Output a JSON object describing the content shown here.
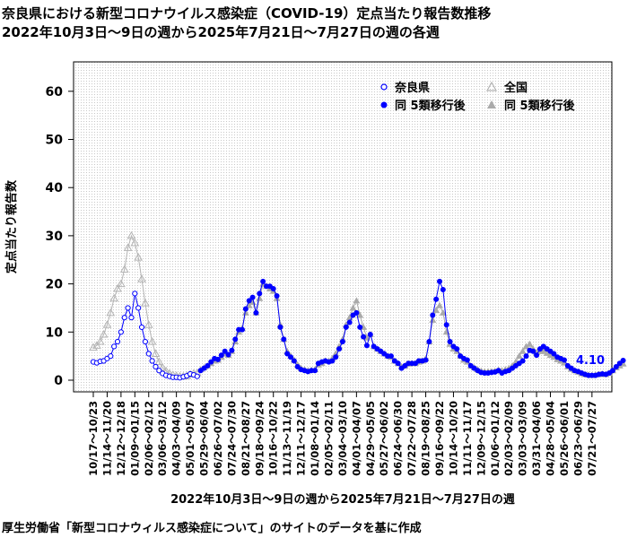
{
  "chart_data": {
    "type": "line",
    "title": "奈良県における新型コロナウイルス感染症（COVID-19）定点当たり報告数推移",
    "subtitle": "2022年10月3日～9日の週から2025年7月21日～7月27日の週の各週",
    "xlabel": "2022年10月3日～9日の週から2025年7月21日～7月27日の週",
    "ylabel": "定点当たり報告数",
    "ylim": [
      0,
      65
    ],
    "yticks": [
      0,
      10,
      20,
      30,
      40,
      50,
      60
    ],
    "grid": true,
    "legend_position": "top-right",
    "last_value_label": "4.10",
    "x_tick_labels": [
      "10/17～10/23",
      "11/14～11/20",
      "12/12～12/18",
      "01/09～01/15",
      "02/06～02/12",
      "03/06～03/12",
      "04/03～04/09",
      "05/01～05/07",
      "05/29～06/04",
      "06/26～07/02",
      "07/24～07/30",
      "08/21～08/27",
      "09/18～09/24",
      "10/16～10/22",
      "11/13～11/19",
      "12/11～12/17",
      "01/08～01/14",
      "02/05～02/11",
      "03/04～03/10",
      "04/01～04/07",
      "04/29～05/05",
      "05/27～06/02",
      "06/24～06/30",
      "07/22～07/28",
      "08/19～08/25",
      "09/16～09/22",
      "10/14～10/20",
      "11/11～11/17",
      "12/09～12/15",
      "01/06～01/12",
      "02/03～02/09",
      "03/03～03/09",
      "03/31～04/06",
      "04/28～05/04",
      "05/26～06/01",
      "06/23～06/29",
      "07/21～07/27"
    ],
    "series": [
      {
        "name": "奈良県",
        "color": "#0000ff",
        "marker": "open-circle",
        "start_week": 0,
        "values": [
          3.8,
          3.6,
          3.9,
          4.0,
          4.5,
          5.0,
          7.0,
          8.0,
          10.0,
          13.0,
          15.0,
          13.0,
          18.0,
          15.0,
          11.0,
          8.0,
          5.5,
          4.0,
          2.8,
          2.0,
          1.4,
          1.0,
          0.8,
          0.6,
          0.6,
          0.5,
          0.7,
          0.9,
          1.3,
          1.1,
          0.8
        ]
      },
      {
        "name": "全国",
        "color": "#b4b4b4",
        "marker": "open-triangle",
        "start_week": 0,
        "values": [
          6.8,
          7.2,
          8.0,
          9.5,
          11.5,
          14.0,
          17.0,
          19.0,
          20.0,
          23.0,
          27.5,
          30.0,
          28.5,
          25.5,
          21.0,
          16.0,
          11.5,
          8.0,
          5.5,
          3.8,
          2.6,
          1.9,
          1.4,
          1.1,
          0.9,
          0.8,
          0.8,
          0.9,
          1.2,
          1.4,
          1.5
        ]
      },
      {
        "name": "同 5類移行後",
        "color": "#0000ff",
        "marker": "filled-circle",
        "start_week": 31,
        "values": [
          2.0,
          2.5,
          3.0,
          3.8,
          4.5,
          4.3,
          5.2,
          6.0,
          5.3,
          6.2,
          8.5,
          10.5,
          10.5,
          14.8,
          16.5,
          17.2,
          14.0,
          18.0,
          20.5,
          19.5,
          19.5,
          19.0,
          17.5,
          11.0,
          8.5,
          5.5,
          4.8,
          4.0,
          2.8,
          2.2,
          2.0,
          1.8,
          2.0,
          2.0,
          3.5,
          3.8,
          4.0,
          3.8,
          4.0,
          4.8,
          6.5,
          8.0,
          11.0,
          12.0,
          13.5,
          14.0,
          11.0,
          9.0,
          7.2,
          9.5,
          7.0,
          6.5,
          6.0,
          5.5,
          5.0,
          5.0,
          4.0,
          3.5,
          2.5,
          3.0,
          3.5,
          3.5,
          3.5,
          4.0,
          4.0,
          4.2,
          8.0,
          13.5,
          16.8,
          20.5,
          18.8,
          11.5,
          8.0,
          7.0,
          6.5,
          5.0,
          4.5,
          4.2,
          3.0,
          2.5,
          2.0,
          1.6,
          1.5,
          1.5,
          1.6,
          1.7,
          2.0,
          1.5,
          1.8,
          2.0,
          2.5,
          3.0,
          3.5,
          4.0,
          5.0,
          6.2,
          6.0,
          5.2,
          6.5,
          7.0,
          6.5,
          6.0,
          5.5,
          4.8,
          4.5,
          4.2,
          3.0,
          2.5,
          2.0,
          1.8,
          1.5,
          1.2,
          1.0,
          1.0,
          1.0,
          1.2,
          1.3,
          1.2,
          1.5,
          2.0,
          2.8,
          3.5,
          4.1
        ]
      },
      {
        "name": "同 5類移行後",
        "color": "#aaaaaa",
        "marker": "filled-triangle",
        "start_week": 31,
        "values": [
          2.2,
          2.6,
          3.0,
          3.5,
          4.0,
          4.2,
          4.8,
          5.5,
          5.2,
          6.0,
          8.0,
          10.0,
          10.8,
          14.0,
          15.5,
          16.2,
          14.0,
          17.0,
          20.0,
          19.5,
          19.0,
          18.5,
          17.0,
          11.5,
          8.5,
          6.0,
          5.0,
          4.2,
          3.2,
          2.5,
          2.2,
          2.0,
          2.1,
          2.2,
          3.2,
          3.5,
          4.0,
          4.0,
          4.5,
          5.5,
          7.0,
          8.5,
          11.5,
          13.0,
          15.0,
          16.5,
          13.5,
          11.0,
          8.8,
          9.5,
          7.0,
          6.5,
          6.0,
          5.5,
          5.0,
          4.8,
          4.0,
          3.5,
          2.8,
          3.0,
          3.4,
          3.5,
          3.5,
          3.8,
          4.0,
          4.5,
          8.0,
          12.5,
          14.5,
          15.5,
          14.0,
          10.0,
          7.5,
          6.5,
          6.0,
          5.0,
          4.2,
          3.8,
          3.0,
          2.6,
          2.2,
          1.9,
          1.8,
          1.8,
          1.8,
          1.9,
          2.1,
          2.0,
          2.2,
          2.5,
          3.0,
          3.8,
          5.0,
          6.0,
          7.0,
          7.5,
          6.5,
          5.8,
          6.0,
          6.0,
          5.6,
          5.2,
          4.8,
          4.3,
          4.0,
          3.6,
          2.8,
          2.3,
          2.0,
          1.7,
          1.4,
          1.2,
          1.1,
          1.0,
          1.1,
          1.2,
          1.3,
          1.2,
          1.5,
          2.0,
          2.6,
          3.0,
          3.4
        ]
      }
    ]
  },
  "footer": {
    "source": "厚生労働省「新型コロナウィルス感染症について」のサイトのデータを基に作成"
  }
}
